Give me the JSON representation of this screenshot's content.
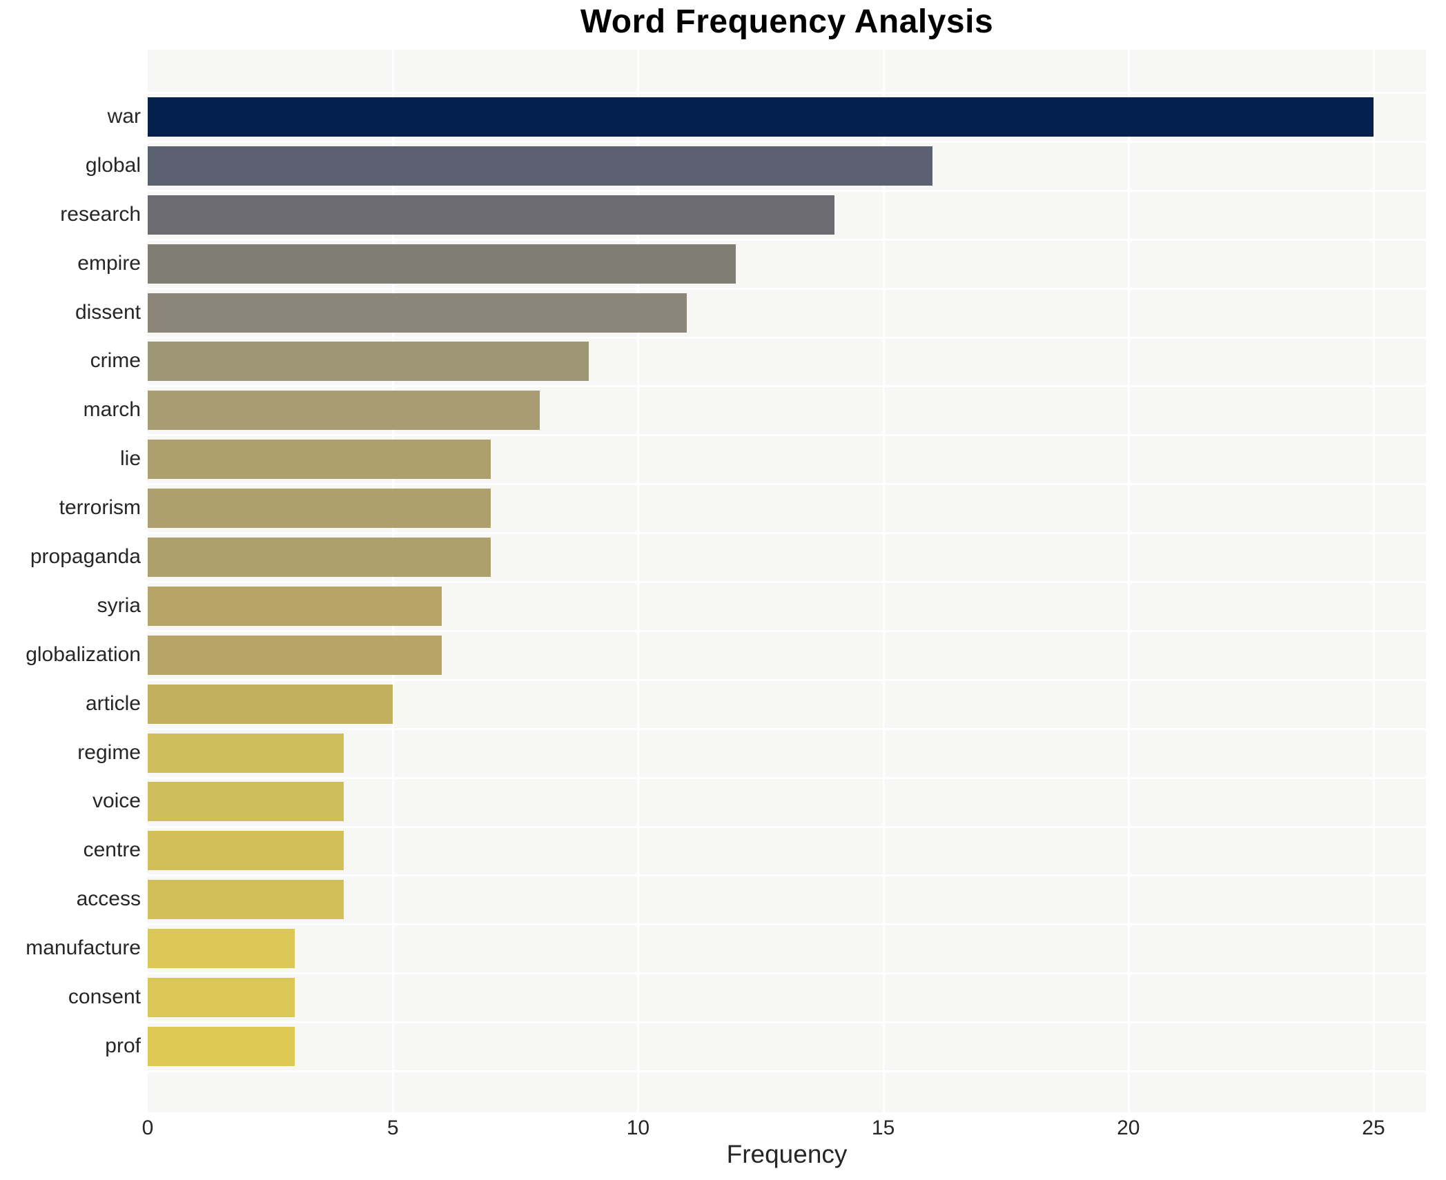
{
  "title": "Word Frequency Analysis",
  "chart_data": {
    "type": "bar",
    "orientation": "horizontal",
    "title": "Word Frequency Analysis",
    "xlabel": "Frequency",
    "ylabel": "",
    "categories": [
      "war",
      "global",
      "research",
      "empire",
      "dissent",
      "crime",
      "march",
      "lie",
      "terrorism",
      "propaganda",
      "syria",
      "globalization",
      "article",
      "regime",
      "voice",
      "centre",
      "access",
      "manufacture",
      "consent",
      "prof"
    ],
    "values": [
      25,
      16,
      14,
      12,
      11,
      9,
      8,
      7,
      7,
      7,
      6,
      6,
      5,
      4,
      4,
      4,
      4,
      3,
      3,
      3
    ],
    "bar_colors": [
      "#03214c",
      "#5b6170",
      "#6c6b72",
      "#807d74",
      "#8b8679",
      "#9e9775",
      "#a89c72",
      "#ad9f6e",
      "#ad9f6e",
      "#aea06d",
      "#b6a567",
      "#b6a567",
      "#c3b05e",
      "#d0bd5b",
      "#d0bd5b",
      "#d2bf5a",
      "#d2bf5a",
      "#dbc755",
      "#dbc755",
      "#dec955"
    ],
    "xticks": [
      0,
      5,
      10,
      15,
      20,
      25
    ],
    "xlim": [
      0,
      26.07
    ],
    "grid": "white vertical gridlines at ticks and white horizontal separators between category rows, drawn behind bars",
    "legend": "none",
    "colors": {
      "plot_bg": "#f7f7f5",
      "grid": "#ffffff",
      "tick_text": "#262626",
      "title_text": "#000000"
    }
  }
}
